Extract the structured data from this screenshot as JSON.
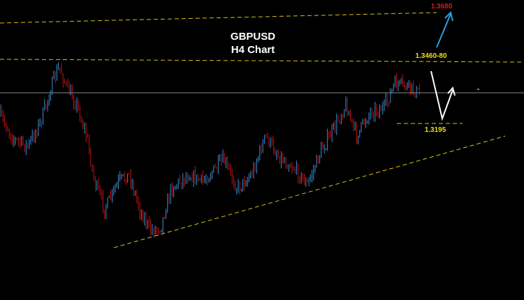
{
  "title": [
    "GBPUSD",
    "H4 Chart"
  ],
  "levels": {
    "target_high": "1.3680",
    "resistance": "1.3460-80",
    "support": "1.3195"
  }
}
